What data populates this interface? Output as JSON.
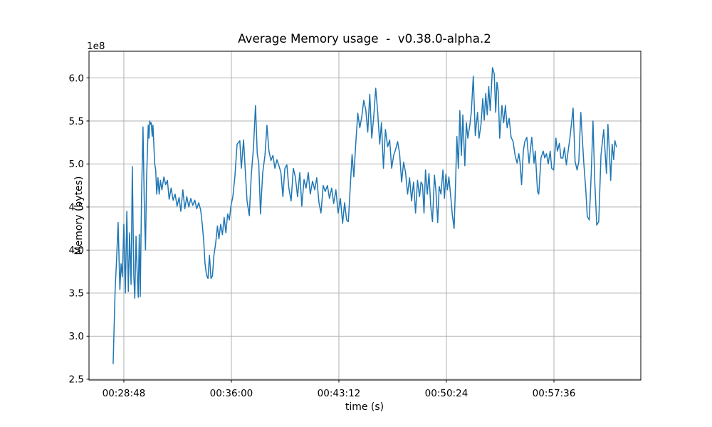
{
  "chart_data": {
    "type": "line",
    "title": "Average Memory usage  -  v0.38.0-alpha.2",
    "xlabel": "time (s)",
    "ylabel": "Memory (bytes)",
    "y_offset_label": "1e8",
    "grid": true,
    "legend": "none",
    "line_color": "#1f77b4",
    "grid_color": "#b0b0b0",
    "spine_color": "#000000",
    "xlim_seconds": [
      1588,
      3805
    ],
    "ylim": [
      2.49,
      6.31
    ],
    "y_ticks": [
      2.5,
      3.0,
      3.5,
      4.0,
      4.5,
      5.0,
      5.5,
      6.0
    ],
    "x_ticks": [
      {
        "seconds": 1728,
        "label": "00:28:48"
      },
      {
        "seconds": 2160,
        "label": "00:36:00"
      },
      {
        "seconds": 2592,
        "label": "00:43:12"
      },
      {
        "seconds": 3024,
        "label": "00:50:24"
      },
      {
        "seconds": 3456,
        "label": "00:57:36"
      }
    ],
    "series": [
      {
        "name": "average-memory-usage",
        "unit": "1e8 bytes",
        "points": [
          [
            1685,
            2.68
          ],
          [
            1693,
            3.54
          ],
          [
            1699,
            3.9
          ],
          [
            1705,
            4.32
          ],
          [
            1712,
            3.54
          ],
          [
            1717,
            3.84
          ],
          [
            1722,
            3.69
          ],
          [
            1728,
            4.3
          ],
          [
            1734,
            3.5
          ],
          [
            1740,
            4.45
          ],
          [
            1746,
            3.52
          ],
          [
            1751,
            4.2
          ],
          [
            1757,
            3.6
          ],
          [
            1762,
            4.97
          ],
          [
            1768,
            3.7
          ],
          [
            1772,
            3.44
          ],
          [
            1777,
            4.16
          ],
          [
            1781,
            3.77
          ],
          [
            1786,
            3.45
          ],
          [
            1790,
            4.18
          ],
          [
            1794,
            3.46
          ],
          [
            1799,
            4.6
          ],
          [
            1805,
            5.43
          ],
          [
            1811,
            4.4
          ],
          [
            1815,
            4.0
          ],
          [
            1819,
            4.8
          ],
          [
            1823,
            5.17
          ],
          [
            1826,
            5.45
          ],
          [
            1829,
            5.3
          ],
          [
            1832,
            5.5
          ],
          [
            1835,
            5.46
          ],
          [
            1838,
            5.48
          ],
          [
            1842,
            5.32
          ],
          [
            1845,
            5.45
          ],
          [
            1848,
            5.26
          ],
          [
            1852,
            5.0
          ],
          [
            1856,
            4.93
          ],
          [
            1860,
            4.65
          ],
          [
            1865,
            4.84
          ],
          [
            1870,
            4.65
          ],
          [
            1875,
            4.81
          ],
          [
            1881,
            4.7
          ],
          [
            1889,
            4.85
          ],
          [
            1896,
            4.76
          ],
          [
            1903,
            4.81
          ],
          [
            1910,
            4.59
          ],
          [
            1918,
            4.72
          ],
          [
            1926,
            4.58
          ],
          [
            1934,
            4.65
          ],
          [
            1942,
            4.51
          ],
          [
            1950,
            4.61
          ],
          [
            1957,
            4.45
          ],
          [
            1965,
            4.7
          ],
          [
            1973,
            4.48
          ],
          [
            1981,
            4.62
          ],
          [
            1989,
            4.5
          ],
          [
            1997,
            4.6
          ],
          [
            2005,
            4.52
          ],
          [
            2013,
            4.58
          ],
          [
            2021,
            4.48
          ],
          [
            2029,
            4.55
          ],
          [
            2037,
            4.46
          ],
          [
            2043,
            4.3
          ],
          [
            2049,
            4.1
          ],
          [
            2054,
            3.85
          ],
          [
            2060,
            3.71
          ],
          [
            2066,
            3.67
          ],
          [
            2072,
            3.94
          ],
          [
            2078,
            3.67
          ],
          [
            2084,
            3.7
          ],
          [
            2090,
            3.94
          ],
          [
            2097,
            4.08
          ],
          [
            2104,
            4.28
          ],
          [
            2110,
            4.13
          ],
          [
            2117,
            4.3
          ],
          [
            2124,
            4.18
          ],
          [
            2131,
            4.38
          ],
          [
            2138,
            4.2
          ],
          [
            2145,
            4.42
          ],
          [
            2152,
            4.35
          ],
          [
            2158,
            4.51
          ],
          [
            2166,
            4.62
          ],
          [
            2174,
            4.85
          ],
          [
            2183,
            5.23
          ],
          [
            2194,
            5.27
          ],
          [
            2200,
            4.95
          ],
          [
            2209,
            5.28
          ],
          [
            2217,
            4.87
          ],
          [
            2223,
            4.57
          ],
          [
            2232,
            4.4
          ],
          [
            2240,
            4.87
          ],
          [
            2249,
            5.2
          ],
          [
            2257,
            5.68
          ],
          [
            2264,
            5.12
          ],
          [
            2270,
            5.01
          ],
          [
            2277,
            4.42
          ],
          [
            2286,
            4.9
          ],
          [
            2295,
            5.1
          ],
          [
            2303,
            5.45
          ],
          [
            2311,
            5.15
          ],
          [
            2319,
            5.04
          ],
          [
            2327,
            5.1
          ],
          [
            2335,
            4.95
          ],
          [
            2343,
            5.05
          ],
          [
            2351,
            4.98
          ],
          [
            2359,
            4.9
          ],
          [
            2367,
            4.62
          ],
          [
            2375,
            4.95
          ],
          [
            2383,
            4.99
          ],
          [
            2391,
            4.72
          ],
          [
            2400,
            4.57
          ],
          [
            2409,
            4.95
          ],
          [
            2417,
            4.85
          ],
          [
            2426,
            4.62
          ],
          [
            2435,
            4.9
          ],
          [
            2443,
            4.51
          ],
          [
            2452,
            4.82
          ],
          [
            2460,
            4.72
          ],
          [
            2469,
            4.9
          ],
          [
            2477,
            4.65
          ],
          [
            2486,
            4.8
          ],
          [
            2495,
            4.7
          ],
          [
            2503,
            4.84
          ],
          [
            2512,
            4.55
          ],
          [
            2520,
            4.43
          ],
          [
            2529,
            4.75
          ],
          [
            2537,
            4.68
          ],
          [
            2546,
            4.75
          ],
          [
            2554,
            4.6
          ],
          [
            2563,
            4.72
          ],
          [
            2571,
            4.54
          ],
          [
            2580,
            4.7
          ],
          [
            2589,
            4.43
          ],
          [
            2598,
            4.6
          ],
          [
            2607,
            4.31
          ],
          [
            2615,
            4.55
          ],
          [
            2623,
            4.35
          ],
          [
            2630,
            4.33
          ],
          [
            2638,
            4.75
          ],
          [
            2645,
            5.11
          ],
          [
            2652,
            4.85
          ],
          [
            2660,
            5.25
          ],
          [
            2668,
            5.59
          ],
          [
            2676,
            5.42
          ],
          [
            2684,
            5.55
          ],
          [
            2692,
            5.74
          ],
          [
            2700,
            5.63
          ],
          [
            2708,
            5.37
          ],
          [
            2716,
            5.81
          ],
          [
            2724,
            5.3
          ],
          [
            2732,
            5.55
          ],
          [
            2740,
            5.88
          ],
          [
            2748,
            5.6
          ],
          [
            2756,
            5.23
          ],
          [
            2763,
            5.48
          ],
          [
            2771,
            4.95
          ],
          [
            2779,
            5.4
          ],
          [
            2788,
            5.2
          ],
          [
            2796,
            5.28
          ],
          [
            2804,
            4.95
          ],
          [
            2812,
            5.1
          ],
          [
            2820,
            5.17
          ],
          [
            2828,
            5.26
          ],
          [
            2836,
            5.12
          ],
          [
            2844,
            4.79
          ],
          [
            2852,
            5.02
          ],
          [
            2860,
            4.9
          ],
          [
            2868,
            4.65
          ],
          [
            2876,
            4.84
          ],
          [
            2884,
            4.57
          ],
          [
            2892,
            4.79
          ],
          [
            2900,
            4.43
          ],
          [
            2908,
            4.81
          ],
          [
            2916,
            4.62
          ],
          [
            2922,
            4.79
          ],
          [
            2928,
            4.76
          ],
          [
            2934,
            4.43
          ],
          [
            2940,
            4.93
          ],
          [
            2947,
            4.65
          ],
          [
            2954,
            4.89
          ],
          [
            2961,
            4.51
          ],
          [
            2968,
            4.33
          ],
          [
            2976,
            4.87
          ],
          [
            2982,
            4.68
          ],
          [
            2989,
            4.32
          ],
          [
            2995,
            4.74
          ],
          [
            3002,
            4.65
          ],
          [
            3010,
            4.93
          ],
          [
            3016,
            4.6
          ],
          [
            3022,
            4.88
          ],
          [
            3028,
            4.7
          ],
          [
            3034,
            4.85
          ],
          [
            3042,
            4.6
          ],
          [
            3048,
            4.4
          ],
          [
            3055,
            4.25
          ],
          [
            3061,
            4.8
          ],
          [
            3066,
            5.32
          ],
          [
            3072,
            4.95
          ],
          [
            3078,
            5.62
          ],
          [
            3084,
            5.1
          ],
          [
            3090,
            5.57
          ],
          [
            3098,
            4.98
          ],
          [
            3104,
            5.48
          ],
          [
            3110,
            5.3
          ],
          [
            3118,
            5.45
          ],
          [
            3124,
            5.6
          ],
          [
            3132,
            6.02
          ],
          [
            3140,
            5.33
          ],
          [
            3149,
            5.6
          ],
          [
            3155,
            5.3
          ],
          [
            3163,
            5.46
          ],
          [
            3170,
            5.76
          ],
          [
            3176,
            5.51
          ],
          [
            3182,
            5.82
          ],
          [
            3188,
            5.57
          ],
          [
            3194,
            5.9
          ],
          [
            3200,
            5.62
          ],
          [
            3209,
            6.12
          ],
          [
            3216,
            6.05
          ],
          [
            3222,
            5.6
          ],
          [
            3227,
            5.95
          ],
          [
            3232,
            5.85
          ],
          [
            3238,
            5.3
          ],
          [
            3247,
            5.68
          ],
          [
            3254,
            5.48
          ],
          [
            3261,
            5.68
          ],
          [
            3268,
            5.42
          ],
          [
            3276,
            5.53
          ],
          [
            3284,
            5.31
          ],
          [
            3292,
            5.26
          ],
          [
            3300,
            5.1
          ],
          [
            3308,
            5.01
          ],
          [
            3315,
            5.12
          ],
          [
            3320,
            5.01
          ],
          [
            3326,
            4.76
          ],
          [
            3333,
            5.15
          ],
          [
            3339,
            5.26
          ],
          [
            3347,
            5.31
          ],
          [
            3356,
            5.01
          ],
          [
            3361,
            5.15
          ],
          [
            3367,
            5.31
          ],
          [
            3376,
            5.01
          ],
          [
            3381,
            5.15
          ],
          [
            3390,
            4.68
          ],
          [
            3395,
            4.65
          ],
          [
            3404,
            5.07
          ],
          [
            3413,
            5.15
          ],
          [
            3419,
            5.07
          ],
          [
            3426,
            5.12
          ],
          [
            3433,
            5.0
          ],
          [
            3441,
            5.15
          ],
          [
            3447,
            4.95
          ],
          [
            3455,
            4.93
          ],
          [
            3464,
            5.3
          ],
          [
            3470,
            5.15
          ],
          [
            3478,
            5.24
          ],
          [
            3484,
            5.07
          ],
          [
            3492,
            5.07
          ],
          [
            3498,
            5.19
          ],
          [
            3506,
            4.99
          ],
          [
            3513,
            5.15
          ],
          [
            3521,
            5.32
          ],
          [
            3533,
            5.65
          ],
          [
            3541,
            5.03
          ],
          [
            3549,
            4.93
          ],
          [
            3556,
            5.03
          ],
          [
            3564,
            5.6
          ],
          [
            3570,
            5.3
          ],
          [
            3576,
            5.01
          ],
          [
            3584,
            4.7
          ],
          [
            3590,
            4.39
          ],
          [
            3598,
            4.35
          ],
          [
            3606,
            4.9
          ],
          [
            3613,
            5.5
          ],
          [
            3620,
            4.8
          ],
          [
            3628,
            4.29
          ],
          [
            3636,
            4.33
          ],
          [
            3645,
            5.1
          ],
          [
            3656,
            5.4
          ],
          [
            3667,
            4.89
          ],
          [
            3673,
            5.46
          ],
          [
            3682,
            4.96
          ],
          [
            3684,
            4.81
          ],
          [
            3690,
            5.23
          ],
          [
            3696,
            5.05
          ],
          [
            3701,
            5.27
          ],
          [
            3707,
            5.2
          ]
        ]
      }
    ],
    "layout_hints": {
      "legend_position": "none",
      "grid_on": true,
      "x_axis_format": "HH:MM:SS"
    }
  }
}
